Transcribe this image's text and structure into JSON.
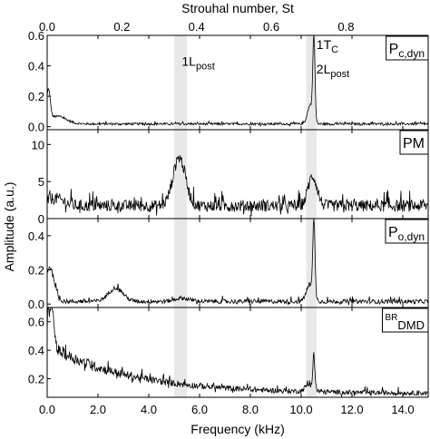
{
  "chart_data": {
    "type": "line",
    "top_axis": {
      "label": "Strouhal number, St",
      "range": [
        0,
        1.02
      ],
      "ticks": [
        "0.0",
        "0.2",
        "0.4",
        "0.6",
        "0.8"
      ],
      "tick_values": [
        0,
        0.2,
        0.4,
        0.6,
        0.8
      ]
    },
    "xlabel": "Frequency (kHz)",
    "ylabel": "Amplitude (a.u.)",
    "xlim": [
      0,
      15
    ],
    "x_ticks": [
      "0.0",
      "2.0",
      "4.0",
      "6.0",
      "8.0",
      "10.0",
      "12.0",
      "14.0"
    ],
    "x_tick_values": [
      0,
      2,
      4,
      6,
      8,
      10,
      12,
      14
    ],
    "shaded_bands": [
      [
        5.0,
        5.5
      ],
      [
        10.2,
        10.6
      ]
    ],
    "annotations": [
      {
        "text": "1L",
        "subscript": "post",
        "panel": 0,
        "x": 5.3,
        "y": 0.4
      },
      {
        "text": "1T",
        "subscript": "C",
        "panel": 0,
        "x": 10.6,
        "y": 0.51
      },
      {
        "text": "2L",
        "subscript": "post",
        "panel": 0,
        "x": 10.6,
        "y": 0.35
      }
    ],
    "panels": [
      {
        "label": "P",
        "label_sub": "c,dyn",
        "label_sup": "",
        "ylim": [
          -0.02,
          0.6
        ],
        "yticks": [
          "0.0",
          "0.2",
          "0.4",
          "0.6"
        ],
        "ytick_values": [
          0,
          0.2,
          0.4,
          0.6
        ],
        "baseline": 0.015,
        "peaks": [
          {
            "f": 0.05,
            "amp": 0.2,
            "w": 0.1
          },
          {
            "f": 0.4,
            "amp": 0.05,
            "w": 0.5
          },
          {
            "f": 10.5,
            "amp": 0.55,
            "w": 0.06
          },
          {
            "f": 10.35,
            "amp": 0.12,
            "w": 0.15
          }
        ],
        "noise": 0.015
      },
      {
        "label": "PM",
        "label_sub": "",
        "label_sup": "",
        "ylim": [
          0,
          12
        ],
        "yticks": [
          "0",
          "5",
          "10"
        ],
        "ytick_values": [
          0,
          5,
          10
        ],
        "baseline": 1.4,
        "peaks": [
          {
            "f": 5.2,
            "amp": 6.5,
            "w": 0.35
          },
          {
            "f": 10.45,
            "amp": 4.0,
            "w": 0.25
          },
          {
            "f": 0.3,
            "amp": 1.0,
            "w": 0.5
          }
        ],
        "noise": 1.6
      },
      {
        "label": "P",
        "label_sub": "o,dyn",
        "label_sup": "",
        "ylim": [
          -0.02,
          0.5
        ],
        "yticks": [
          "0.0",
          "0.2",
          "0.4"
        ],
        "ytick_values": [
          0,
          0.2,
          0.4
        ],
        "baseline": 0.01,
        "peaks": [
          {
            "f": 0.1,
            "amp": 0.2,
            "w": 0.25
          },
          {
            "f": 2.7,
            "amp": 0.08,
            "w": 0.4
          },
          {
            "f": 10.5,
            "amp": 0.43,
            "w": 0.06
          },
          {
            "f": 10.35,
            "amp": 0.1,
            "w": 0.2
          },
          {
            "f": 5.3,
            "amp": 0.02,
            "w": 0.4
          }
        ],
        "noise": 0.025
      },
      {
        "label": "",
        "label_sub": "DMD",
        "label_sup": "BR",
        "ylim": [
          0.07,
          0.7
        ],
        "yticks": [
          "0.2",
          "0.4",
          "0.6"
        ],
        "ytick_values": [
          0.2,
          0.4,
          0.6
        ],
        "baseline": 0.09,
        "decay": {
          "amp": 0.33,
          "tau": 3.2
        },
        "peaks": [
          {
            "f": 0.15,
            "amp": 0.3,
            "w": 0.15
          },
          {
            "f": 10.5,
            "amp": 0.22,
            "w": 0.06
          },
          {
            "f": 10.3,
            "amp": 0.05,
            "w": 0.2
          }
        ],
        "noise": 0.06
      }
    ]
  }
}
